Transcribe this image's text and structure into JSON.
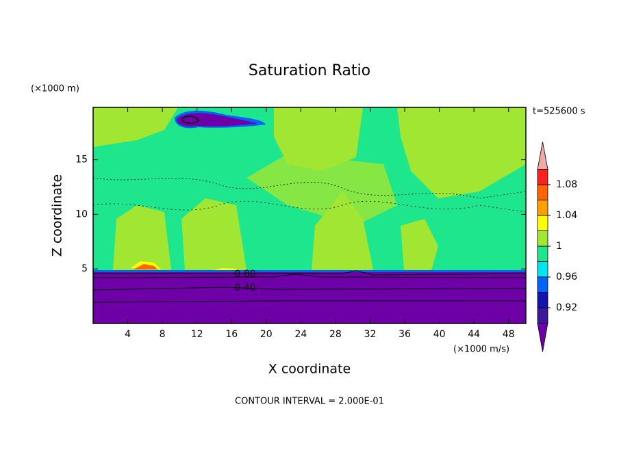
{
  "chart_data": {
    "type": "contour",
    "title": "Saturation Ratio",
    "x_label": "X coordinate",
    "y_label": "Z coordinate",
    "x_unit": "(×1000 m/s)",
    "y_unit": "(×1000 m)",
    "time_label": "t=525600 s",
    "footer": "CONTOUR INTERVAL = 2.000E-01",
    "xlim": [
      0,
      50
    ],
    "ylim": [
      0,
      19.8
    ],
    "xticks": [
      4,
      8,
      12,
      16,
      20,
      24,
      28,
      32,
      36,
      40,
      44,
      48
    ],
    "yticks": [
      5,
      10,
      15
    ],
    "levels": [
      0.9,
      0.92,
      0.94,
      0.96,
      0.98,
      1,
      1.02,
      1.04,
      1.06,
      1.08,
      1.1
    ],
    "level_colors": [
      "#3a1a9a",
      "#1414b0",
      "#0064ff",
      "#00e6f0",
      "#1ee68c",
      "#a0e632",
      "#ffff00",
      "#ffa000",
      "#ff6400",
      "#ff2020"
    ],
    "under_color": "#6e00a8",
    "over_color": "#f0a8a8",
    "cbar_ticks": [
      0.92,
      0.96,
      1,
      1.04,
      1.08
    ],
    "contour_labels": [
      {
        "value": 0.8,
        "label": "0.80"
      },
      {
        "value": 0.4,
        "label": "0.40"
      }
    ]
  }
}
